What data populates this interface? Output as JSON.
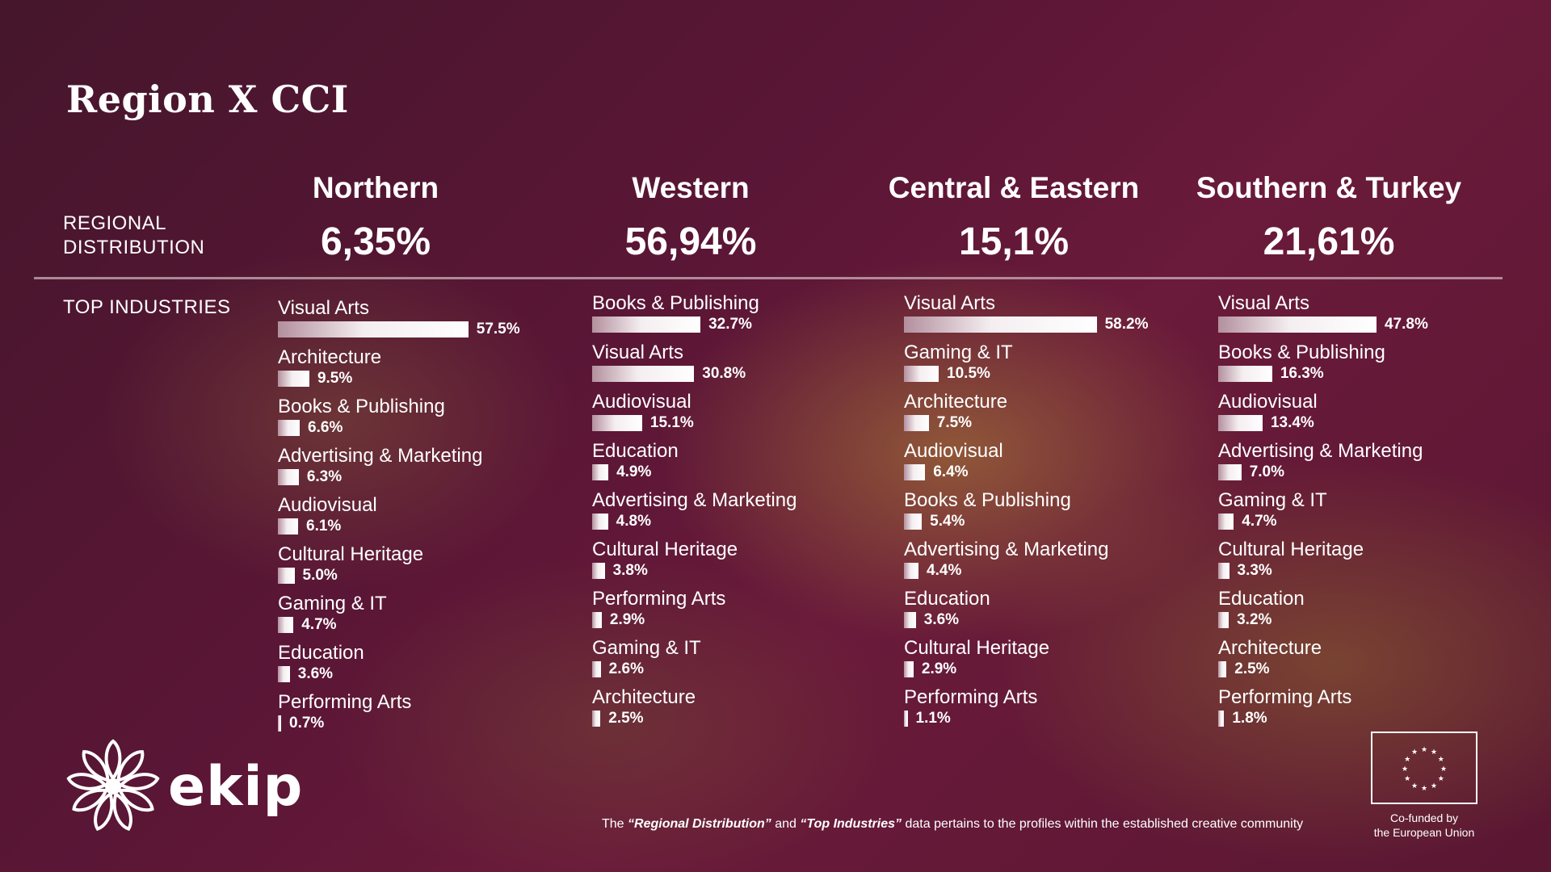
{
  "title": "Region X CCI",
  "row_labels": {
    "regional_distribution_line1": "REGIONAL",
    "regional_distribution_line2": "DISTRIBUTION",
    "top_industries": "TOP INDUSTRIES"
  },
  "colors": {
    "bar_light": "#ffffff",
    "bar_dark": "#b38f9d",
    "divider": "#dcc8cd"
  },
  "chart_data": [
    {
      "type": "bar",
      "title": "Northern",
      "regional_share": "6,35%",
      "categories": [
        "Visual Arts",
        "Architecture",
        "Books & Publishing",
        "Advertising & Marketing",
        "Audiovisual",
        "Cultural Heritage",
        "Gaming & IT",
        "Education",
        "Performing Arts"
      ],
      "values": [
        57.5,
        9.5,
        6.6,
        6.3,
        6.1,
        5.0,
        4.7,
        3.6,
        0.7
      ],
      "value_labels": [
        "57.5%",
        "9.5%",
        "6.6%",
        "6.3%",
        "6.1%",
        "5.0%",
        "4.7%",
        "3.6%",
        "0.7%"
      ]
    },
    {
      "type": "bar",
      "title": "Western",
      "regional_share": "56,94%",
      "categories": [
        "Books & Publishing",
        "Visual Arts",
        "Audiovisual",
        "Education",
        "Advertising & Marketing",
        "Cultural Heritage",
        "Performing Arts",
        "Gaming & IT",
        "Architecture"
      ],
      "values": [
        32.7,
        30.8,
        15.1,
        4.9,
        4.8,
        3.8,
        2.9,
        2.6,
        2.5
      ],
      "value_labels": [
        "32.7%",
        "30.8%",
        "15.1%",
        "4.9%",
        "4.8%",
        "3.8%",
        "2.9%",
        "2.6%",
        "2.5%"
      ]
    },
    {
      "type": "bar",
      "title": "Central & Eastern",
      "regional_share": "15,1%",
      "categories": [
        "Visual Arts",
        "Gaming & IT",
        "Architecture",
        "Audiovisual",
        "Books & Publishing",
        "Advertising & Marketing",
        "Education",
        "Cultural Heritage",
        "Performing Arts"
      ],
      "values": [
        58.2,
        10.5,
        7.5,
        6.4,
        5.4,
        4.4,
        3.6,
        2.9,
        1.1
      ],
      "value_labels": [
        "58.2%",
        "10.5%",
        "7.5%",
        "6.4%",
        "5.4%",
        "4.4%",
        "3.6%",
        "2.9%",
        "1.1%"
      ]
    },
    {
      "type": "bar",
      "title": "Southern & Turkey",
      "regional_share": "21,61%",
      "categories": [
        "Visual Arts",
        "Books & Publishing",
        "Audiovisual",
        "Advertising & Marketing",
        "Gaming & IT",
        "Cultural Heritage",
        "Education",
        "Architecture",
        "Performing Arts"
      ],
      "values": [
        47.8,
        16.3,
        13.4,
        7.0,
        4.7,
        3.3,
        3.2,
        2.5,
        1.8
      ],
      "value_labels": [
        "47.8%",
        "16.3%",
        "13.4%",
        "7.0%",
        "4.7%",
        "3.3%",
        "3.2%",
        "2.5%",
        "1.8%"
      ]
    }
  ],
  "footnote": {
    "pre": "The ",
    "term1": "“Regional Distribution”",
    "mid": " and ",
    "term2": "“Top Industries”",
    "post": " data pertains to the profiles within the established creative community"
  },
  "logo": {
    "text": "ekip",
    "icon": "flower-icon"
  },
  "eu": {
    "caption_line1": "Co-funded by",
    "caption_line2": "the European Union",
    "icon": "eu-flag-icon"
  }
}
